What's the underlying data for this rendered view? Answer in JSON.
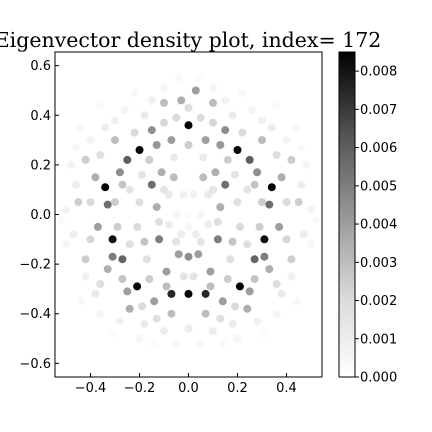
{
  "chart_data": {
    "type": "scatter",
    "title": "Eigenvector density plot, index= 172",
    "xlabel": "",
    "ylabel": "",
    "xlim": [
      -0.545,
      0.545
    ],
    "ylim": [
      -0.655,
      0.655
    ],
    "x_ticks": [
      -0.4,
      -0.2,
      0.0,
      0.2,
      0.4
    ],
    "x_tick_labels": [
      "−0.4",
      "−0.2",
      "0.0",
      "0.2",
      "0.4"
    ],
    "y_ticks": [
      -0.6,
      -0.4,
      -0.2,
      0.0,
      0.2,
      0.4,
      0.6
    ],
    "y_tick_labels": [
      "−0.6",
      "−0.4",
      "−0.2",
      "0.0",
      "0.2",
      "0.4",
      "0.6"
    ],
    "grid": false,
    "colormap": "Greys",
    "colorbar": {
      "min": 0.0,
      "max": 0.0085,
      "ticks": [
        0.0,
        0.001,
        0.002,
        0.003,
        0.004,
        0.005,
        0.006,
        0.007,
        0.008
      ],
      "tick_labels": [
        "0.000",
        "0.001",
        "0.002",
        "0.003",
        "0.004",
        "0.005",
        "0.006",
        "0.007",
        "0.008"
      ]
    },
    "marker_size": 4,
    "points_note": "points listed as [x, y, density]",
    "points": [
      [
        0.0,
        0.36,
        0.0085
      ],
      [
        0.2,
        0.26,
        0.0083
      ],
      [
        -0.2,
        0.26,
        0.0083
      ],
      [
        0.34,
        0.11,
        0.0085
      ],
      [
        -0.34,
        0.11,
        0.0085
      ],
      [
        0.31,
        -0.1,
        0.0082
      ],
      [
        -0.31,
        -0.1,
        0.0082
      ],
      [
        0.21,
        -0.29,
        0.0084
      ],
      [
        -0.21,
        -0.29,
        0.0084
      ],
      [
        0.0,
        -0.32,
        0.0084
      ],
      [
        0.07,
        -0.32,
        0.0075
      ],
      [
        -0.07,
        -0.32,
        0.0075
      ],
      [
        0.25,
        0.22,
        0.006
      ],
      [
        -0.25,
        0.22,
        0.006
      ],
      [
        0.27,
        -0.18,
        0.0058
      ],
      [
        -0.27,
        -0.18,
        0.0058
      ],
      [
        0.33,
        0.04,
        0.0055
      ],
      [
        -0.33,
        0.04,
        0.0055
      ],
      [
        0.15,
        0.34,
        0.0045
      ],
      [
        -0.15,
        0.34,
        0.0045
      ],
      [
        0.15,
        0.12,
        0.0055
      ],
      [
        -0.15,
        0.12,
        0.0055
      ],
      [
        0.12,
        -0.1,
        0.005
      ],
      [
        -0.12,
        -0.1,
        0.005
      ],
      [
        0.0,
        -0.17,
        0.0045
      ],
      [
        0.04,
        -0.16,
        0.004
      ],
      [
        -0.04,
        -0.16,
        0.004
      ],
      [
        0.07,
        0.3,
        0.004
      ],
      [
        -0.07,
        0.3,
        0.004
      ],
      [
        0.13,
        0.28,
        0.0042
      ],
      [
        -0.13,
        0.28,
        0.0042
      ],
      [
        0.28,
        0.17,
        0.0045
      ],
      [
        -0.28,
        0.17,
        0.0045
      ],
      [
        0.31,
        -0.17,
        0.005
      ],
      [
        -0.31,
        -0.17,
        0.005
      ],
      [
        0.13,
        0.03,
        0.0035
      ],
      [
        -0.13,
        0.03,
        0.0035
      ],
      [
        0.11,
        0.17,
        0.0035
      ],
      [
        -0.11,
        0.17,
        0.0035
      ],
      [
        0.06,
        0.15,
        0.003
      ],
      [
        -0.06,
        0.15,
        0.003
      ],
      [
        0.09,
        -0.23,
        0.004
      ],
      [
        -0.09,
        -0.23,
        0.004
      ],
      [
        0.14,
        -0.35,
        0.004
      ],
      [
        -0.14,
        -0.35,
        0.004
      ],
      [
        0.25,
        -0.31,
        0.004
      ],
      [
        -0.25,
        -0.31,
        0.004
      ],
      [
        0.33,
        -0.22,
        0.0035
      ],
      [
        -0.33,
        -0.22,
        0.0035
      ],
      [
        0.37,
        -0.05,
        0.004
      ],
      [
        -0.37,
        -0.05,
        0.004
      ],
      [
        0.38,
        0.15,
        0.0035
      ],
      [
        -0.38,
        0.15,
        0.0035
      ],
      [
        0.3,
        0.3,
        0.003
      ],
      [
        -0.3,
        0.3,
        0.003
      ],
      [
        0.1,
        0.45,
        0.003
      ],
      [
        -0.1,
        0.45,
        0.003
      ],
      [
        0.03,
        0.5,
        0.004
      ],
      [
        -0.03,
        0.46,
        0.0035
      ],
      [
        0.24,
        -0.38,
        0.0035
      ],
      [
        -0.24,
        -0.38,
        0.0035
      ],
      [
        0.07,
        -0.4,
        0.003
      ],
      [
        -0.07,
        -0.4,
        0.003
      ],
      [
        0.45,
        0.05,
        0.0025
      ],
      [
        -0.45,
        0.05,
        0.0025
      ],
      [
        0.42,
        -0.18,
        0.0025
      ],
      [
        -0.42,
        -0.18,
        0.0025
      ],
      [
        0.42,
        0.22,
        0.0025
      ],
      [
        -0.42,
        0.22,
        0.0025
      ],
      [
        0.02,
        0.08,
        0.0008
      ],
      [
        -0.02,
        0.08,
        0.0008
      ],
      [
        0.0,
        0.0,
        0.0002
      ],
      [
        0.05,
        0.0,
        0.0005
      ],
      [
        -0.05,
        0.0,
        0.0005
      ],
      [
        0.0,
        -0.05,
        0.0005
      ],
      [
        0.03,
        -0.08,
        0.001
      ],
      [
        -0.03,
        -0.08,
        0.001
      ],
      [
        0.08,
        0.08,
        0.0012
      ],
      [
        -0.08,
        0.08,
        0.0012
      ],
      [
        0.08,
        -0.04,
        0.001
      ],
      [
        -0.08,
        -0.04,
        0.001
      ],
      [
        0.2,
        0.05,
        0.0018
      ],
      [
        -0.2,
        0.05,
        0.0018
      ],
      [
        0.21,
        -0.05,
        0.002
      ],
      [
        -0.21,
        -0.05,
        0.002
      ],
      [
        0.19,
        0.16,
        0.0015
      ],
      [
        -0.19,
        0.16,
        0.0015
      ],
      [
        0.17,
        -0.18,
        0.0018
      ],
      [
        -0.17,
        -0.18,
        0.0018
      ],
      [
        0.06,
        0.23,
        0.0012
      ],
      [
        -0.06,
        0.23,
        0.0012
      ],
      [
        0.02,
        -0.25,
        0.0015
      ],
      [
        -0.02,
        -0.25,
        0.0015
      ],
      [
        0.24,
        0.1,
        0.0015
      ],
      [
        -0.24,
        0.1,
        0.0015
      ],
      [
        0.24,
        -0.12,
        0.0018
      ],
      [
        -0.24,
        -0.12,
        0.0018
      ],
      [
        0.18,
        0.4,
        0.0012
      ],
      [
        -0.18,
        0.4,
        0.0012
      ],
      [
        0.34,
        0.35,
        0.001
      ],
      [
        -0.34,
        0.35,
        0.001
      ],
      [
        0.46,
        0.12,
        0.001
      ],
      [
        -0.46,
        0.12,
        0.001
      ],
      [
        0.47,
        -0.08,
        0.001
      ],
      [
        -0.47,
        -0.08,
        0.001
      ],
      [
        0.38,
        -0.32,
        0.0012
      ],
      [
        -0.38,
        -0.32,
        0.0012
      ],
      [
        0.18,
        -0.44,
        0.0012
      ],
      [
        -0.18,
        -0.44,
        0.0012
      ],
      [
        0.0,
        -0.46,
        0.001
      ],
      [
        0.1,
        -0.47,
        0.001
      ],
      [
        -0.1,
        -0.47,
        0.001
      ],
      [
        0.28,
        -0.43,
        0.0008
      ],
      [
        -0.28,
        -0.43,
        0.0008
      ],
      [
        0.42,
        -0.25,
        0.0008
      ],
      [
        -0.42,
        -0.25,
        0.0008
      ],
      [
        0.5,
        0.02,
        0.0006
      ],
      [
        -0.5,
        0.02,
        0.0006
      ],
      [
        0.5,
        -0.12,
        0.0005
      ],
      [
        -0.5,
        -0.12,
        0.0005
      ],
      [
        0.48,
        0.2,
        0.0006
      ],
      [
        -0.48,
        0.2,
        0.0006
      ],
      [
        0.4,
        0.3,
        0.0006
      ],
      [
        -0.4,
        0.3,
        0.0006
      ],
      [
        0.26,
        0.42,
        0.0006
      ],
      [
        -0.26,
        0.42,
        0.0006
      ],
      [
        0.1,
        0.51,
        0.0005
      ],
      [
        -0.1,
        0.51,
        0.0005
      ],
      [
        0.3,
        0.38,
        0.0008
      ],
      [
        -0.3,
        0.38,
        0.0008
      ],
      [
        0.36,
        -0.4,
        0.0005
      ],
      [
        -0.36,
        -0.4,
        0.0005
      ],
      [
        0.2,
        -0.5,
        0.0005
      ],
      [
        -0.2,
        -0.5,
        0.0005
      ],
      [
        0.05,
        -0.52,
        0.0004
      ],
      [
        -0.05,
        -0.52,
        0.0004
      ],
      [
        0.44,
        -0.35,
        0.0004
      ],
      [
        -0.44,
        -0.35,
        0.0004
      ],
      [
        0.52,
        -0.02,
        0.0003
      ],
      [
        -0.52,
        -0.02,
        0.0003
      ],
      [
        0.44,
        0.35,
        0.0004
      ],
      [
        -0.44,
        0.35,
        0.0004
      ],
      [
        0.22,
        0.49,
        0.0004
      ],
      [
        -0.22,
        0.49,
        0.0004
      ],
      [
        0.36,
        0.44,
        0.0003
      ],
      [
        -0.36,
        0.44,
        0.0003
      ],
      [
        0.31,
        -0.48,
        0.0003
      ],
      [
        -0.31,
        -0.48,
        0.0003
      ],
      [
        0.3,
        0.05,
        0.0025
      ],
      [
        -0.3,
        0.05,
        0.0025
      ],
      [
        0.29,
        -0.05,
        0.0025
      ],
      [
        -0.29,
        -0.05,
        0.0025
      ],
      [
        0.1,
        0.37,
        0.0022
      ],
      [
        -0.1,
        0.37,
        0.0022
      ],
      [
        0.05,
        0.39,
        0.002
      ],
      [
        -0.05,
        0.39,
        0.002
      ],
      [
        0.16,
        -0.26,
        0.0025
      ],
      [
        -0.16,
        -0.26,
        0.0025
      ],
      [
        0.13,
        -0.42,
        0.0018
      ],
      [
        -0.13,
        -0.42,
        0.0018
      ],
      [
        0.22,
        0.33,
        0.002
      ],
      [
        -0.22,
        0.33,
        0.002
      ],
      [
        0.4,
        0.05,
        0.002
      ],
      [
        -0.4,
        0.05,
        0.002
      ],
      [
        0.4,
        -0.1,
        0.0022
      ],
      [
        -0.4,
        -0.1,
        0.0022
      ],
      [
        0.36,
        0.24,
        0.0018
      ],
      [
        -0.36,
        0.24,
        0.0018
      ],
      [
        0.36,
        -0.28,
        0.0018
      ],
      [
        -0.36,
        -0.28,
        0.0018
      ],
      [
        0.19,
        -0.37,
        0.002
      ],
      [
        -0.19,
        -0.37,
        0.002
      ],
      [
        0.27,
        0.12,
        0.0028
      ],
      [
        -0.27,
        0.12,
        0.0028
      ],
      [
        0.27,
        -0.26,
        0.0028
      ],
      [
        -0.27,
        -0.26,
        0.0028
      ],
      [
        0.09,
        -0.29,
        0.003
      ],
      [
        -0.09,
        -0.29,
        0.003
      ],
      [
        0.0,
        0.28,
        0.0025
      ],
      [
        0.0,
        0.43,
        0.0018
      ],
      [
        0.16,
        0.22,
        0.0025
      ],
      [
        -0.16,
        0.22,
        0.0025
      ],
      [
        0.18,
        -0.11,
        0.0028
      ],
      [
        -0.18,
        -0.11,
        0.0028
      ],
      [
        0.1,
        0.1,
        0.0015
      ],
      [
        -0.1,
        0.1,
        0.0015
      ],
      [
        0.12,
        -0.03,
        0.0018
      ],
      [
        -0.12,
        -0.03,
        0.0018
      ],
      [
        0.05,
        -0.11,
        0.0015
      ],
      [
        -0.05,
        -0.11,
        0.0015
      ],
      [
        0.15,
        0.46,
        0.0008
      ],
      [
        -0.15,
        0.46,
        0.0008
      ],
      [
        0.04,
        0.55,
        0.0003
      ],
      [
        -0.04,
        0.55,
        0.0003
      ],
      [
        0.46,
        0.27,
        0.0004
      ],
      [
        -0.46,
        0.27,
        0.0004
      ],
      [
        0.14,
        -0.52,
        0.0003
      ],
      [
        -0.14,
        -0.52,
        0.0003
      ]
    ]
  }
}
